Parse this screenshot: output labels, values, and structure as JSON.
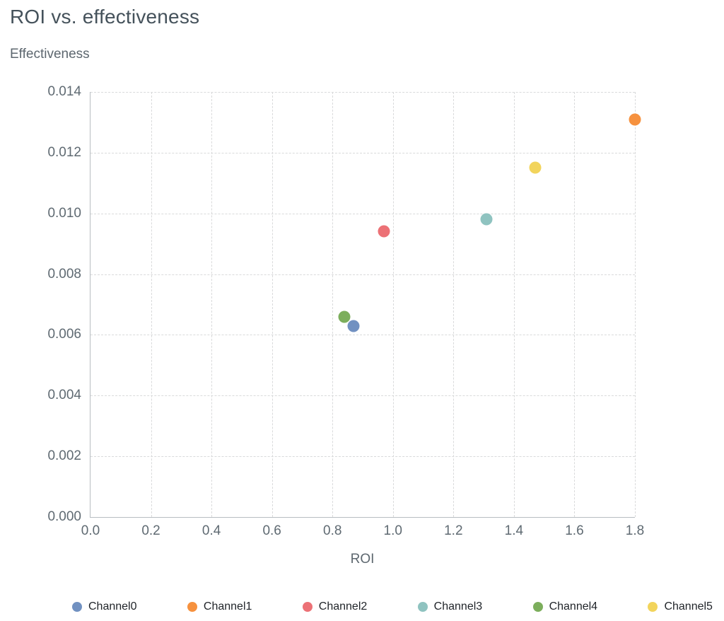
{
  "chart_data": {
    "type": "scatter",
    "title": "ROI vs. effectiveness",
    "xlabel": "ROI",
    "ylabel": "Effectiveness",
    "xlim": [
      0.0,
      1.8
    ],
    "ylim": [
      0.0,
      0.014
    ],
    "xticks": [
      0.0,
      0.2,
      0.4,
      0.6,
      0.8,
      1.0,
      1.2,
      1.4,
      1.6,
      1.8
    ],
    "xtick_labels": [
      "0.0",
      "0.2",
      "0.4",
      "0.6",
      "0.8",
      "1.0",
      "1.2",
      "1.4",
      "1.6",
      "1.8"
    ],
    "yticks": [
      0.0,
      0.002,
      0.004,
      0.006,
      0.008,
      0.01,
      0.012,
      0.014
    ],
    "ytick_labels": [
      "0.000",
      "0.002",
      "0.004",
      "0.006",
      "0.008",
      "0.010",
      "0.012",
      "0.014"
    ],
    "grid": true,
    "grid_style": "dashed",
    "legend_position": "bottom",
    "series": [
      {
        "name": "Channel0",
        "x": 0.87,
        "y": 0.0063,
        "color": "#7191c1"
      },
      {
        "name": "Channel1",
        "x": 1.8,
        "y": 0.0131,
        "color": "#f6913e"
      },
      {
        "name": "Channel2",
        "x": 0.97,
        "y": 0.0094,
        "color": "#ec7176"
      },
      {
        "name": "Channel3",
        "x": 1.31,
        "y": 0.0098,
        "color": "#8fc3c0"
      },
      {
        "name": "Channel4",
        "x": 0.84,
        "y": 0.0066,
        "color": "#7cae5c"
      },
      {
        "name": "Channel5",
        "x": 1.47,
        "y": 0.0115,
        "color": "#f2d45c"
      }
    ]
  }
}
